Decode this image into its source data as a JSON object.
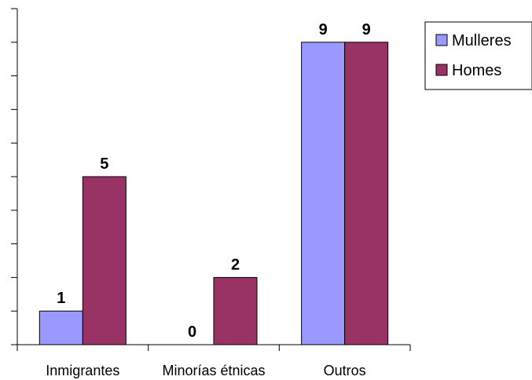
{
  "chart_data": {
    "type": "bar",
    "categories": [
      "Inmigrantes",
      "Minorías étnicas",
      "Outros"
    ],
    "series": [
      {
        "name": "Mulleres",
        "values": [
          1,
          0,
          9
        ],
        "color": "#9999ff"
      },
      {
        "name": "Homes",
        "values": [
          5,
          2,
          9
        ],
        "color": "#993366"
      }
    ],
    "ylim": [
      0,
      10
    ],
    "ytick_count": 10,
    "grid": false,
    "legend_position": "top-right",
    "data_labels": true
  }
}
